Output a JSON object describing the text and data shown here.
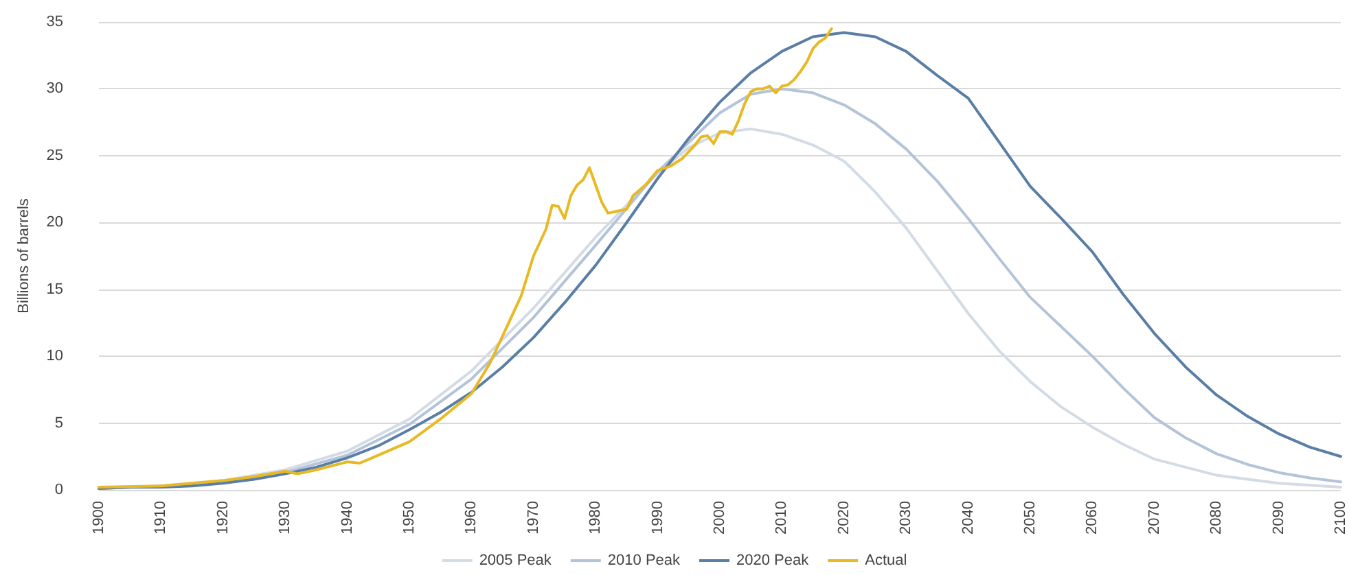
{
  "chart_data": {
    "type": "line",
    "ylabel": "Billions of barrels",
    "xlim": [
      1900,
      2100
    ],
    "xticks": [
      1900,
      1910,
      1920,
      1930,
      1940,
      1950,
      1960,
      1970,
      1980,
      1990,
      2000,
      2010,
      2020,
      2030,
      2040,
      2050,
      2060,
      2070,
      2080,
      2090,
      2100
    ],
    "ylim": [
      0,
      35
    ],
    "yticks": [
      0,
      5,
      10,
      15,
      20,
      25,
      30,
      35
    ],
    "grid": "y",
    "legend": "bottom",
    "marker": "none",
    "line_style": "solid",
    "series": [
      {
        "name": "2005 Peak",
        "color": "#d3dbe5",
        "x": [
          1900,
          1910,
          1920,
          1930,
          1940,
          1950,
          1960,
          1970,
          1980,
          1990,
          1995,
          2000,
          2005,
          2010,
          2015,
          2020,
          2025,
          2030,
          2035,
          2040,
          2045,
          2050,
          2055,
          2060,
          2065,
          2070,
          2080,
          2090,
          2100
        ],
        "values": [
          0.1,
          0.3,
          0.7,
          1.5,
          2.9,
          5.3,
          8.9,
          13.6,
          18.9,
          23.7,
          25.6,
          26.7,
          27.0,
          26.6,
          25.8,
          24.6,
          22.3,
          19.6,
          16.4,
          13.2,
          10.4,
          8.1,
          6.2,
          4.7,
          3.4,
          2.3,
          1.1,
          0.5,
          0.2
        ]
      },
      {
        "name": "2010 Peak",
        "color": "#b4c4d8",
        "x": [
          1900,
          1910,
          1920,
          1930,
          1940,
          1950,
          1960,
          1970,
          1980,
          1990,
          2000,
          2005,
          2010,
          2015,
          2020,
          2025,
          2030,
          2035,
          2040,
          2045,
          2050,
          2055,
          2060,
          2065,
          2070,
          2075,
          2080,
          2085,
          2090,
          2095,
          2100
        ],
        "values": [
          0.1,
          0.3,
          0.6,
          1.3,
          2.6,
          4.9,
          8.3,
          12.9,
          18.3,
          23.8,
          28.2,
          29.6,
          30.0,
          29.7,
          28.8,
          27.4,
          25.5,
          23.1,
          20.3,
          17.3,
          14.4,
          12.2,
          10.0,
          7.6,
          5.4,
          3.9,
          2.7,
          1.9,
          1.3,
          0.9,
          0.6
        ]
      },
      {
        "name": "2020 Peak",
        "color": "#5a7ea6",
        "x": [
          1900,
          1905,
          1910,
          1915,
          1920,
          1925,
          1930,
          1935,
          1940,
          1945,
          1950,
          1955,
          1960,
          1965,
          1970,
          1975,
          1980,
          1985,
          1990,
          1995,
          2000,
          2005,
          2010,
          2015,
          2020,
          2025,
          2030,
          2035,
          2040,
          2045,
          2050,
          2055,
          2060,
          2065,
          2070,
          2075,
          2080,
          2085,
          2090,
          2095,
          2100
        ],
        "values": [
          0.1,
          0.2,
          0.2,
          0.3,
          0.5,
          0.8,
          1.2,
          1.7,
          2.4,
          3.3,
          4.5,
          5.8,
          7.3,
          9.2,
          11.4,
          14.0,
          16.8,
          20.0,
          23.3,
          26.3,
          29.0,
          31.2,
          32.8,
          33.9,
          34.2,
          33.9,
          32.8,
          31.0,
          29.3,
          26.0,
          22.7,
          20.3,
          17.8,
          14.6,
          11.7,
          9.2,
          7.1,
          5.5,
          4.2,
          3.2,
          2.5
        ]
      },
      {
        "name": "Actual",
        "color": "#e8b923",
        "x": [
          1900,
          1910,
          1920,
          1925,
          1930,
          1932,
          1935,
          1940,
          1942,
          1945,
          1948,
          1950,
          1955,
          1960,
          1963,
          1965,
          1968,
          1970,
          1972,
          1973,
          1974,
          1975,
          1976,
          1977,
          1978,
          1979,
          1980,
          1981,
          1982,
          1983,
          1985,
          1986,
          1988,
          1990,
          1992,
          1994,
          1996,
          1997,
          1998,
          1999,
          2000,
          2001,
          2002,
          2003,
          2004,
          2005,
          2006,
          2007,
          2008,
          2009,
          2010,
          2011,
          2012,
          2013,
          2014,
          2015,
          2016,
          2017,
          2018
        ],
        "values": [
          0.2,
          0.3,
          0.7,
          1.0,
          1.4,
          1.2,
          1.5,
          2.1,
          2.0,
          2.6,
          3.2,
          3.6,
          5.3,
          7.2,
          9.5,
          11.5,
          14.5,
          17.5,
          19.5,
          21.3,
          21.2,
          20.3,
          22.0,
          22.8,
          23.2,
          24.1,
          22.8,
          21.5,
          20.7,
          20.8,
          21.0,
          22.0,
          22.8,
          23.9,
          24.2,
          24.8,
          25.8,
          26.4,
          26.5,
          25.9,
          26.8,
          26.8,
          26.6,
          27.6,
          28.9,
          29.8,
          30.0,
          30.0,
          30.2,
          29.7,
          30.2,
          30.3,
          30.7,
          31.3,
          32.0,
          33.0,
          33.5,
          33.8,
          34.5
        ]
      }
    ]
  }
}
